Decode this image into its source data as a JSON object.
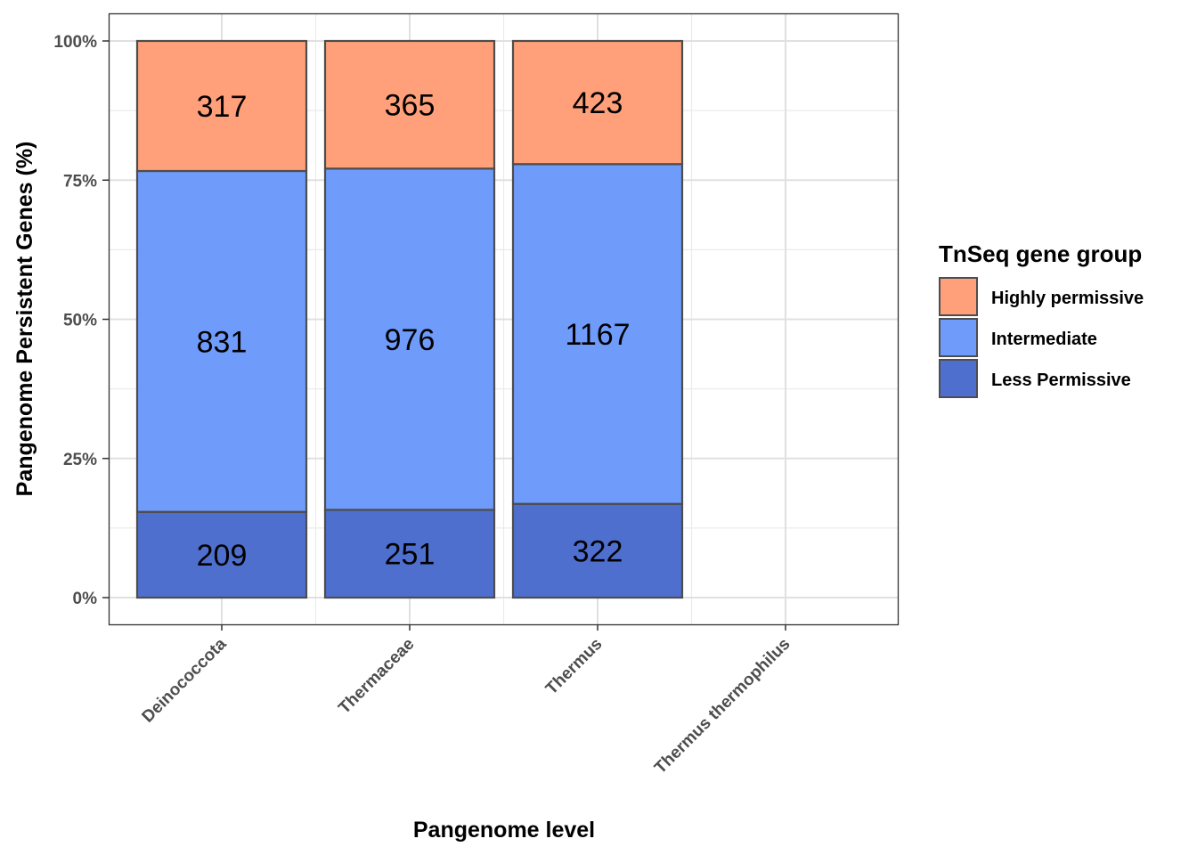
{
  "chart_data": {
    "type": "bar",
    "stacked": "percent",
    "categories": [
      "Deinococcota",
      "Thermaceae",
      "Thermus",
      "Thermus thermophilus"
    ],
    "series": [
      {
        "name": "Less Permissive",
        "values": [
          209,
          251,
          322,
          null
        ],
        "color": "#4F6FCF"
      },
      {
        "name": "Intermediate",
        "values": [
          831,
          976,
          1167,
          null
        ],
        "color": "#6F9BFB"
      },
      {
        "name": "Highly permissive",
        "values": [
          317,
          365,
          423,
          null
        ],
        "color": "#FFA07A"
      }
    ],
    "xlabel": "Pangenome level",
    "ylabel": "Pangenome Persistent Genes  (%)",
    "ylim": [
      0,
      100
    ],
    "yticks": [
      "0%",
      "25%",
      "50%",
      "75%",
      "100%"
    ],
    "grid": true,
    "legend": {
      "title": "TnSeq gene group",
      "position": "right",
      "items": [
        "Highly permissive",
        "Intermediate",
        "Less Permissive"
      ]
    }
  }
}
